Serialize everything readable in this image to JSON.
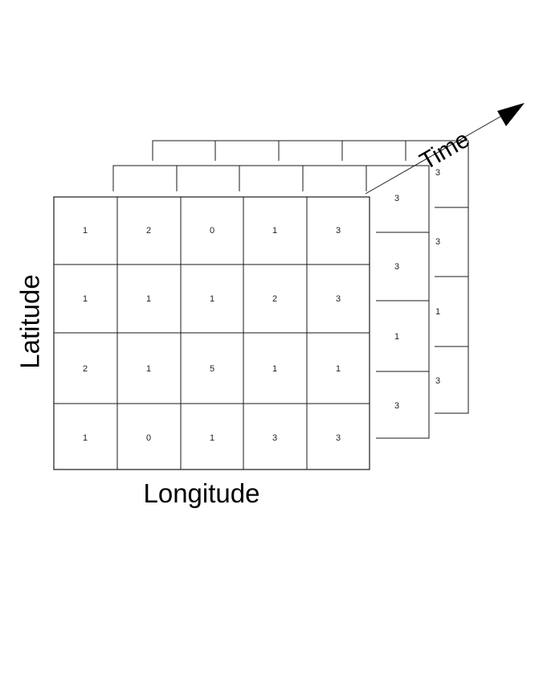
{
  "labels": {
    "x_axis": "Longitude",
    "y_axis": "Latitude",
    "time_axis": "Time"
  },
  "front_grid": [
    [
      "1",
      "2",
      "0",
      "1",
      "3"
    ],
    [
      "1",
      "1",
      "1",
      "2",
      "3"
    ],
    [
      "2",
      "1",
      "5",
      "1",
      "1"
    ],
    [
      "1",
      "0",
      "1",
      "3",
      "3"
    ]
  ],
  "middle_grid_right_column": [
    "3",
    "3",
    "1",
    "3"
  ],
  "back_grid_right_column": [
    "3",
    "3",
    "1",
    "3"
  ]
}
